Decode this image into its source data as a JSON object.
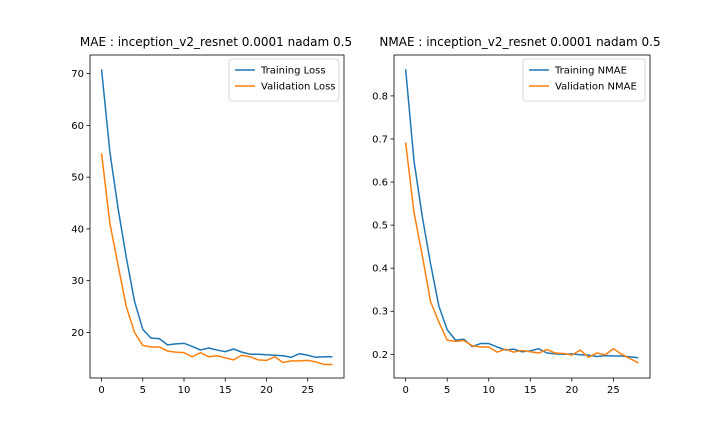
{
  "chart_data": [
    {
      "type": "line",
      "title": "MAE : inception_v2_resnet 0.0001 nadam 0.5",
      "xlabel": "",
      "ylabel": "",
      "xlim": [
        -1.4,
        29.4
      ],
      "ylim": [
        11.2,
        73.6
      ],
      "xticks": [
        0,
        5,
        10,
        15,
        20,
        25
      ],
      "yticks": [
        20,
        30,
        40,
        50,
        60,
        70
      ],
      "legend": "top-right",
      "grid": false,
      "x": [
        0,
        1,
        2,
        3,
        4,
        5,
        6,
        7,
        8,
        9,
        10,
        11,
        12,
        13,
        14,
        15,
        16,
        17,
        18,
        19,
        20,
        21,
        22,
        23,
        24,
        25,
        26,
        27,
        28
      ],
      "series": [
        {
          "name": "Training Loss",
          "color": "#1f77b4",
          "values": [
            70.8,
            55.0,
            44.0,
            34.5,
            26.0,
            20.6,
            18.9,
            18.8,
            17.6,
            17.8,
            17.9,
            17.3,
            16.6,
            17.0,
            16.6,
            16.3,
            16.8,
            16.2,
            15.8,
            15.8,
            15.7,
            15.6,
            15.5,
            15.2,
            15.9,
            15.6,
            15.2,
            15.3,
            15.3
          ]
        },
        {
          "name": "Validation Loss",
          "color": "#ff7f0e",
          "values": [
            54.6,
            41.2,
            33.0,
            25.0,
            20.0,
            17.5,
            17.2,
            17.2,
            16.4,
            16.2,
            16.1,
            15.3,
            16.1,
            15.3,
            15.5,
            15.1,
            14.7,
            15.6,
            15.3,
            14.7,
            14.6,
            15.3,
            14.2,
            14.5,
            14.5,
            14.6,
            14.3,
            13.8,
            13.8
          ]
        }
      ]
    },
    {
      "type": "line",
      "title": "NMAE : inception_v2_resnet 0.0001 nadam 0.5",
      "xlabel": "",
      "ylabel": "",
      "xlim": [
        -1.4,
        29.4
      ],
      "ylim": [
        0.145,
        0.895
      ],
      "xticks": [
        0,
        5,
        10,
        15,
        20,
        25
      ],
      "yticks": [
        0.2,
        0.3,
        0.4,
        0.5,
        0.6,
        0.7,
        0.8
      ],
      "legend": "top-right",
      "grid": false,
      "x": [
        0,
        1,
        2,
        3,
        4,
        5,
        6,
        7,
        8,
        9,
        10,
        11,
        12,
        13,
        14,
        15,
        16,
        17,
        18,
        19,
        20,
        21,
        22,
        23,
        24,
        25,
        26,
        27,
        28
      ],
      "series": [
        {
          "name": "Training NMAE",
          "color": "#1f77b4",
          "values": [
            0.862,
            0.65,
            0.52,
            0.41,
            0.312,
            0.257,
            0.233,
            0.235,
            0.218,
            0.225,
            0.225,
            0.217,
            0.21,
            0.212,
            0.206,
            0.208,
            0.213,
            0.203,
            0.201,
            0.2,
            0.201,
            0.199,
            0.198,
            0.195,
            0.197,
            0.196,
            0.196,
            0.194,
            0.192
          ]
        },
        {
          "name": "Validation NMAE",
          "color": "#ff7f0e",
          "values": [
            0.692,
            0.53,
            0.43,
            0.322,
            0.275,
            0.233,
            0.23,
            0.232,
            0.22,
            0.217,
            0.217,
            0.205,
            0.212,
            0.205,
            0.209,
            0.206,
            0.203,
            0.211,
            0.203,
            0.202,
            0.198,
            0.21,
            0.193,
            0.203,
            0.199,
            0.213,
            0.2,
            0.19,
            0.18
          ]
        }
      ]
    }
  ]
}
